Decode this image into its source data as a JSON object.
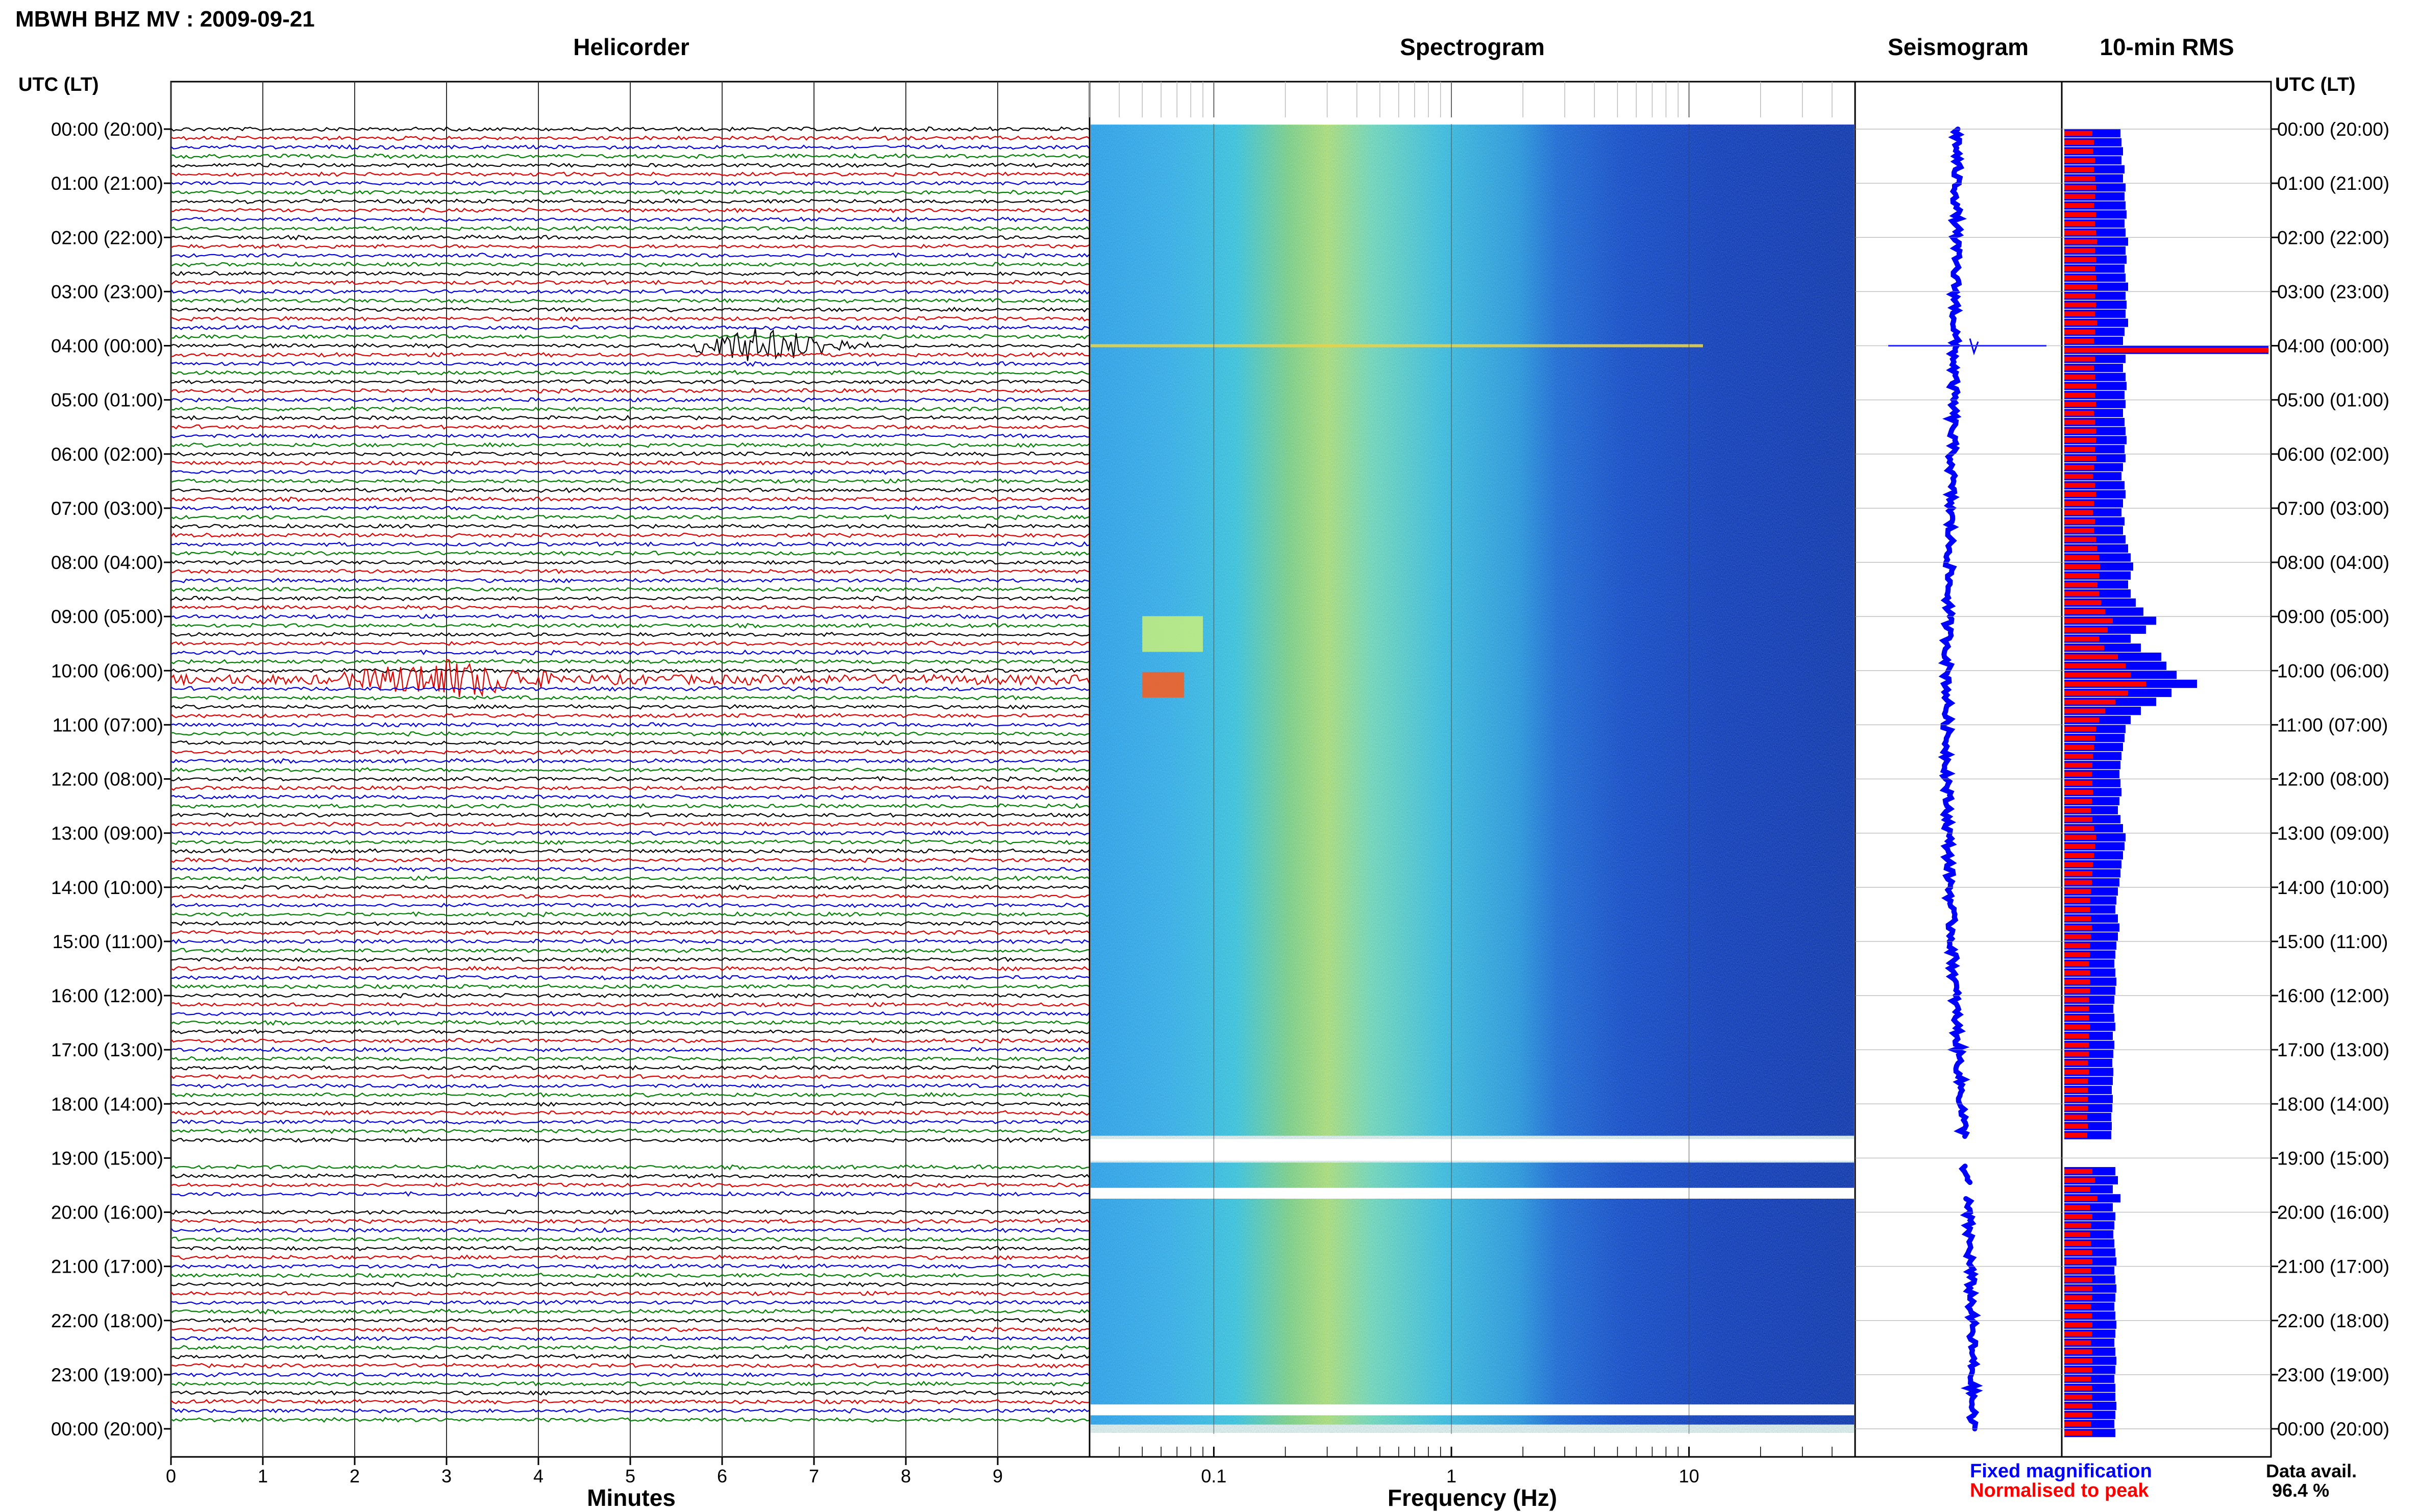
{
  "header": {
    "title": "MBWH BHZ MV : 2009-09-21",
    "tz_label_left": "UTC (LT)",
    "tz_label_right": "UTC (LT)"
  },
  "panels": {
    "helicorder": "Helicorder",
    "spectrogram": "Spectrogram",
    "seismogram": "Seismogram",
    "rms": "10-min RMS"
  },
  "footer": {
    "legend_fixed": "Fixed magnification",
    "legend_normalised": "Normalised to peak",
    "data_avail_label": "Data avail.",
    "data_avail_value": "96.4 %"
  },
  "colors": {
    "trace_cycle": [
      "#000000",
      "#e00000",
      "#0000e0",
      "#008000"
    ],
    "fixed": "#0000ff",
    "normalised": "#ff0000",
    "spectrogram_low": "#00008b",
    "spectrogram_high": "#ff0000"
  },
  "chart_data": [
    {
      "type": "line",
      "name": "helicorder",
      "xlabel": "Minutes",
      "x_ticks": [
        "0",
        "1",
        "2",
        "3",
        "4",
        "5",
        "6",
        "7",
        "8",
        "9"
      ],
      "xlim": [
        0,
        10
      ],
      "rows_per_hour": 6,
      "y_ticks": [
        "00:00 (20:00)",
        "01:00 (21:00)",
        "02:00 (22:00)",
        "03:00 (23:00)",
        "04:00 (00:00)",
        "05:00 (01:00)",
        "06:00 (02:00)",
        "07:00 (03:00)",
        "08:00 (04:00)",
        "09:00 (05:00)",
        "10:00 (06:00)",
        "11:00 (07:00)",
        "12:00 (08:00)",
        "13:00 (09:00)",
        "14:00 (10:00)",
        "15:00 (11:00)",
        "16:00 (12:00)",
        "17:00 (13:00)",
        "18:00 (14:00)",
        "19:00 (15:00)",
        "20:00 (16:00)",
        "21:00 (17:00)",
        "22:00 (18:00)",
        "23:00 (19:00)",
        "00:00 (20:00)"
      ],
      "events": [
        {
          "hour": 4,
          "start_min": 5.7,
          "end_min": 9.2,
          "peak_min": 6.4
        },
        {
          "hour": 10.1,
          "start_min": 0,
          "end_min": 10,
          "peak_min": 3.0
        }
      ],
      "gaps_hours": [
        [
          18.7,
          19.05
        ],
        [
          19.7,
          19.95
        ]
      ]
    },
    {
      "type": "heatmap",
      "name": "spectrogram",
      "xlabel": "Frequency (Hz)",
      "x_scale": "log",
      "x_ticks": [
        "0.1",
        "1",
        "10"
      ],
      "xlim": [
        0.03,
        50
      ],
      "events_hours": [
        4.0,
        9.05,
        10.1
      ],
      "gaps_hours": [
        [
          18.65,
          19.05
        ],
        [
          19.55,
          19.75
        ],
        [
          23.55,
          23.75
        ]
      ]
    },
    {
      "type": "line",
      "name": "seismogram",
      "gaps_hours": [
        [
          18.65,
          19.15
        ],
        [
          19.5,
          19.75
        ]
      ],
      "spike_hour": 4.0
    },
    {
      "type": "bar",
      "name": "rms",
      "series": [
        {
          "name": "Fixed magnification"
        },
        {
          "name": "Normalised to peak"
        }
      ],
      "fixed": [
        1.1,
        1.12,
        1.15,
        1.12,
        1.18,
        1.15,
        1.2,
        1.18,
        1.2,
        1.22,
        1.18,
        1.2,
        1.25,
        1.2,
        1.22,
        1.18,
        1.2,
        1.25,
        1.2,
        1.22,
        1.2,
        1.25,
        1.18,
        1.15,
        4.0,
        1.2,
        1.15,
        1.2,
        1.22,
        1.18,
        1.2,
        1.15,
        1.18,
        1.2,
        1.22,
        1.18,
        1.2,
        1.15,
        1.12,
        1.18,
        1.2,
        1.15,
        1.12,
        1.18,
        1.15,
        1.2,
        1.25,
        1.3,
        1.35,
        1.3,
        1.25,
        1.3,
        1.4,
        1.55,
        1.8,
        1.6,
        1.3,
        1.5,
        1.9,
        2.0,
        2.2,
        2.6,
        2.1,
        1.8,
        1.5,
        1.3,
        1.2,
        1.18,
        1.15,
        1.12,
        1.1,
        1.08,
        1.1,
        1.12,
        1.08,
        1.05,
        1.1,
        1.15,
        1.2,
        1.18,
        1.15,
        1.12,
        1.1,
        1.08,
        1.05,
        1.02,
        1.0,
        1.05,
        1.08,
        1.05,
        1.02,
        1.0,
        0.98,
        1.0,
        1.02,
        1.0,
        0.98,
        0.96,
        0.98,
        1.0,
        0.95,
        0.98,
        0.96,
        0.94,
        0.96,
        0.95,
        0.93,
        0.95,
        0.94,
        0.92,
        0.93,
        0.92,
        null,
        null,
        null,
        1.0,
        1.05,
        0.95,
        1.1,
        0.95,
        1.0,
        0.98,
        0.96,
        0.98,
        1.0,
        1.02,
        0.98,
        1.0,
        1.02,
        1.0,
        0.98,
        1.0,
        1.02,
        1.0,
        0.98,
        1.0,
        1.02,
        1.0,
        0.98,
        1.0,
        1.0,
        1.02,
        1.0,
        0.98,
        1.0
      ],
      "normalised": [
        0.55,
        0.58,
        0.56,
        0.6,
        0.58,
        0.6,
        0.62,
        0.6,
        0.58,
        0.62,
        0.6,
        0.62,
        0.64,
        0.6,
        0.62,
        0.6,
        0.62,
        0.64,
        0.6,
        0.62,
        0.6,
        0.64,
        0.6,
        0.58,
        4.0,
        0.6,
        0.58,
        0.6,
        0.62,
        0.6,
        0.62,
        0.58,
        0.6,
        0.62,
        0.62,
        0.6,
        0.62,
        0.58,
        0.56,
        0.6,
        0.62,
        0.58,
        0.56,
        0.6,
        0.58,
        0.62,
        0.64,
        0.68,
        0.7,
        0.68,
        0.65,
        0.68,
        0.72,
        0.8,
        0.95,
        0.85,
        0.68,
        0.78,
        1.05,
        1.2,
        1.3,
        1.6,
        1.25,
        1.0,
        0.8,
        0.68,
        0.62,
        0.6,
        0.58,
        0.56,
        0.55,
        0.54,
        0.55,
        0.56,
        0.54,
        0.52,
        0.55,
        0.58,
        0.62,
        0.6,
        0.58,
        0.56,
        0.55,
        0.54,
        0.52,
        0.5,
        0.5,
        0.52,
        0.54,
        0.52,
        0.5,
        0.5,
        0.48,
        0.5,
        0.5,
        0.5,
        0.48,
        0.48,
        0.48,
        0.5,
        0.48,
        0.48,
        0.48,
        0.46,
        0.48,
        0.46,
        0.46,
        0.46,
        0.46,
        0.45,
        0.46,
        0.45,
        null,
        null,
        null,
        0.55,
        0.6,
        0.5,
        0.65,
        0.5,
        0.55,
        0.52,
        0.5,
        0.52,
        0.54,
        0.55,
        0.52,
        0.54,
        0.55,
        0.54,
        0.52,
        0.54,
        0.55,
        0.54,
        0.52,
        0.54,
        0.55,
        0.54,
        0.52,
        0.54,
        0.54,
        0.55,
        0.54,
        0.52,
        0.54
      ]
    }
  ]
}
